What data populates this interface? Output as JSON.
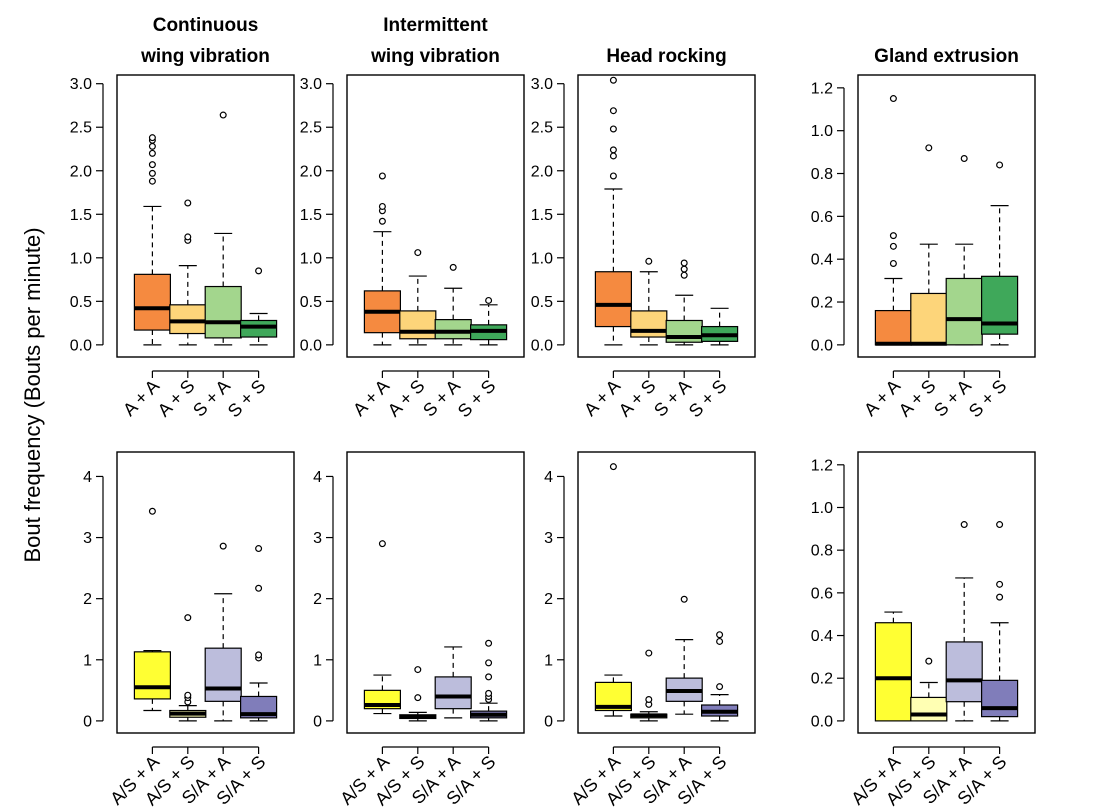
{
  "figure": {
    "ylabel": "Bout frequency (Bouts per minute)"
  },
  "chart_data": [
    {
      "type": "box",
      "title": "Continuous wing vibration",
      "categories": [
        "A + A",
        "A + S",
        "S + A",
        "S + S"
      ],
      "colors": [
        "#F58A40",
        "#FDD57A",
        "#A3D68D",
        "#3FA85A"
      ],
      "ylim": [
        0,
        3.1
      ],
      "yticks": [
        "0.0",
        "0.5",
        "1.0",
        "1.5",
        "2.0",
        "2.5",
        "3.0"
      ],
      "boxes": [
        {
          "whisker_low": 0.0,
          "q1": 0.17,
          "median": 0.42,
          "q3": 0.81,
          "whisker_high": 1.59,
          "outliers": [
            1.88,
            1.97,
            2.07,
            2.2,
            2.28,
            2.35,
            2.38
          ]
        },
        {
          "whisker_low": 0.0,
          "q1": 0.13,
          "median": 0.27,
          "q3": 0.46,
          "whisker_high": 0.91,
          "outliers": [
            1.2,
            1.24,
            1.63
          ]
        },
        {
          "whisker_low": 0.0,
          "q1": 0.08,
          "median": 0.26,
          "q3": 0.67,
          "whisker_high": 1.28,
          "outliers": [
            2.64
          ]
        },
        {
          "whisker_low": 0.0,
          "q1": 0.09,
          "median": 0.21,
          "q3": 0.28,
          "whisker_high": 0.36,
          "outliers": [
            0.85
          ]
        }
      ]
    },
    {
      "type": "box",
      "title": "Intermittent wing vibration",
      "categories": [
        "A + A",
        "A + S",
        "S + A",
        "S + S"
      ],
      "colors": [
        "#F58A40",
        "#FDD57A",
        "#A3D68D",
        "#3FA85A"
      ],
      "ylim": [
        0,
        3.1
      ],
      "yticks": [
        "0.0",
        "0.5",
        "1.0",
        "1.5",
        "2.0",
        "2.5",
        "3.0"
      ],
      "boxes": [
        {
          "whisker_low": 0.0,
          "q1": 0.14,
          "median": 0.38,
          "q3": 0.62,
          "whisker_high": 1.3,
          "outliers": [
            1.42,
            1.54,
            1.59,
            1.94
          ]
        },
        {
          "whisker_low": 0.0,
          "q1": 0.07,
          "median": 0.15,
          "q3": 0.39,
          "whisker_high": 0.79,
          "outliers": [
            1.06
          ]
        },
        {
          "whisker_low": 0.0,
          "q1": 0.07,
          "median": 0.15,
          "q3": 0.29,
          "whisker_high": 0.65,
          "outliers": [
            0.89
          ]
        },
        {
          "whisker_low": 0.0,
          "q1": 0.06,
          "median": 0.16,
          "q3": 0.23,
          "whisker_high": 0.46,
          "outliers": [
            0.51
          ]
        }
      ]
    },
    {
      "type": "box",
      "title": "Head rocking",
      "categories": [
        "A + A",
        "A + S",
        "S + A",
        "S + S"
      ],
      "colors": [
        "#F58A40",
        "#FDD57A",
        "#A3D68D",
        "#3FA85A"
      ],
      "ylim": [
        0,
        3.1
      ],
      "yticks": [
        "0.0",
        "0.5",
        "1.0",
        "1.5",
        "2.0",
        "2.5",
        "3.0"
      ],
      "boxes": [
        {
          "whisker_low": 0.0,
          "q1": 0.21,
          "median": 0.46,
          "q3": 0.84,
          "whisker_high": 1.79,
          "outliers": [
            1.94,
            2.17,
            2.24,
            2.48,
            2.69,
            3.04
          ]
        },
        {
          "whisker_low": 0.0,
          "q1": 0.09,
          "median": 0.16,
          "q3": 0.39,
          "whisker_high": 0.84,
          "outliers": [
            0.96
          ]
        },
        {
          "whisker_low": 0.0,
          "q1": 0.03,
          "median": 0.09,
          "q3": 0.28,
          "whisker_high": 0.57,
          "outliers": [
            0.8,
            0.87,
            0.94
          ]
        },
        {
          "whisker_low": 0.0,
          "q1": 0.04,
          "median": 0.11,
          "q3": 0.21,
          "whisker_high": 0.42,
          "outliers": []
        }
      ]
    },
    {
      "type": "box",
      "title": "Gland extrusion",
      "categories": [
        "A + A",
        "A + S",
        "S + A",
        "S + S"
      ],
      "colors": [
        "#F58A40",
        "#FDD57A",
        "#A3D68D",
        "#3FA85A"
      ],
      "ylim": [
        0,
        1.26
      ],
      "yticks": [
        "0.0",
        "0.2",
        "0.4",
        "0.6",
        "0.8",
        "1.0",
        "1.2"
      ],
      "boxes": [
        {
          "whisker_low": 0.0,
          "q1": 0.0,
          "median": 0.005,
          "q3": 0.16,
          "whisker_high": 0.31,
          "outliers": [
            0.38,
            0.46,
            0.51,
            1.15
          ]
        },
        {
          "whisker_low": 0.0,
          "q1": 0.0,
          "median": 0.005,
          "q3": 0.24,
          "whisker_high": 0.47,
          "outliers": [
            0.92
          ]
        },
        {
          "whisker_low": 0.0,
          "q1": 0.0,
          "median": 0.12,
          "q3": 0.31,
          "whisker_high": 0.47,
          "outliers": [
            0.87
          ]
        },
        {
          "whisker_low": 0.0,
          "q1": 0.05,
          "median": 0.1,
          "q3": 0.32,
          "whisker_high": 0.65,
          "outliers": [
            0.84
          ]
        }
      ]
    },
    {
      "type": "box",
      "title": "",
      "categories": [
        "A/S + A",
        "A/S + S",
        "S/A + A",
        "S/A + S"
      ],
      "colors": [
        "#FFFF33",
        "#FFFFB3",
        "#BCBDDC",
        "#807DBA"
      ],
      "ylim": [
        0,
        4.4
      ],
      "yticks": [
        "0",
        "1",
        "2",
        "3",
        "4"
      ],
      "boxes": [
        {
          "whisker_low": 0.17,
          "q1": 0.36,
          "median": 0.55,
          "q3": 1.13,
          "whisker_high": 1.15,
          "outliers": [
            3.43
          ]
        },
        {
          "whisker_low": 0.0,
          "q1": 0.06,
          "median": 0.12,
          "q3": 0.17,
          "whisker_high": 0.25,
          "outliers": [
            0.31,
            0.38,
            0.42,
            1.69
          ]
        },
        {
          "whisker_low": 0.0,
          "q1": 0.32,
          "median": 0.53,
          "q3": 1.19,
          "whisker_high": 2.08,
          "outliers": [
            2.86
          ]
        },
        {
          "whisker_low": 0.0,
          "q1": 0.05,
          "median": 0.11,
          "q3": 0.4,
          "whisker_high": 0.62,
          "outliers": [
            1.03,
            1.08,
            2.17,
            2.82
          ]
        }
      ]
    },
    {
      "type": "box",
      "title": "",
      "categories": [
        "A/S + A",
        "A/S + S",
        "S/A + A",
        "S/A + S"
      ],
      "colors": [
        "#FFFF33",
        "#FFFFB3",
        "#BCBDDC",
        "#807DBA"
      ],
      "ylim": [
        0,
        4.4
      ],
      "yticks": [
        "0",
        "1",
        "2",
        "3",
        "4"
      ],
      "boxes": [
        {
          "whisker_low": 0.12,
          "q1": 0.2,
          "median": 0.26,
          "q3": 0.5,
          "whisker_high": 0.75,
          "outliers": [
            2.9
          ]
        },
        {
          "whisker_low": 0.0,
          "q1": 0.04,
          "median": 0.07,
          "q3": 0.1,
          "whisker_high": 0.14,
          "outliers": [
            0.38,
            0.84
          ]
        },
        {
          "whisker_low": 0.05,
          "q1": 0.2,
          "median": 0.4,
          "q3": 0.72,
          "whisker_high": 1.21,
          "outliers": []
        },
        {
          "whisker_low": 0.0,
          "q1": 0.05,
          "median": 0.1,
          "q3": 0.16,
          "whisker_high": 0.29,
          "outliers": [
            0.35,
            0.4,
            0.45,
            0.72,
            0.95,
            1.27
          ]
        }
      ]
    },
    {
      "type": "box",
      "title": "",
      "categories": [
        "A/S + A",
        "A/S + S",
        "S/A + A",
        "S/A + S"
      ],
      "colors": [
        "#FFFF33",
        "#FFFFB3",
        "#BCBDDC",
        "#807DBA"
      ],
      "ylim": [
        0,
        4.4
      ],
      "yticks": [
        "0",
        "1",
        "2",
        "3",
        "4"
      ],
      "boxes": [
        {
          "whisker_low": 0.08,
          "q1": 0.17,
          "median": 0.23,
          "q3": 0.63,
          "whisker_high": 0.75,
          "outliers": [
            4.16
          ]
        },
        {
          "whisker_low": 0.0,
          "q1": 0.05,
          "median": 0.09,
          "q3": 0.11,
          "whisker_high": 0.15,
          "outliers": [
            0.27,
            0.35,
            1.11
          ]
        },
        {
          "whisker_low": 0.11,
          "q1": 0.32,
          "median": 0.49,
          "q3": 0.7,
          "whisker_high": 1.33,
          "outliers": [
            1.99
          ]
        },
        {
          "whisker_low": 0.0,
          "q1": 0.08,
          "median": 0.15,
          "q3": 0.26,
          "whisker_high": 0.43,
          "outliers": [
            0.56,
            1.3,
            1.41
          ]
        }
      ]
    },
    {
      "type": "box",
      "title": "",
      "categories": [
        "A/S + A",
        "A/S + S",
        "S/A + A",
        "S/A + S"
      ],
      "colors": [
        "#FFFF33",
        "#FFFFB3",
        "#BCBDDC",
        "#807DBA"
      ],
      "ylim": [
        0,
        1.26
      ],
      "yticks": [
        "0.0",
        "0.2",
        "0.4",
        "0.6",
        "0.8",
        "1.0",
        "1.2"
      ],
      "boxes": [
        {
          "whisker_low": 0.0,
          "q1": 0.0,
          "median": 0.2,
          "q3": 0.46,
          "whisker_high": 0.51,
          "outliers": []
        },
        {
          "whisker_low": 0.0,
          "q1": 0.0,
          "median": 0.03,
          "q3": 0.11,
          "whisker_high": 0.18,
          "outliers": [
            0.28
          ]
        },
        {
          "whisker_low": 0.0,
          "q1": 0.09,
          "median": 0.19,
          "q3": 0.37,
          "whisker_high": 0.67,
          "outliers": [
            0.92
          ]
        },
        {
          "whisker_low": 0.0,
          "q1": 0.02,
          "median": 0.06,
          "q3": 0.19,
          "whisker_high": 0.46,
          "outliers": [
            0.58,
            0.64,
            0.92
          ]
        }
      ]
    }
  ]
}
